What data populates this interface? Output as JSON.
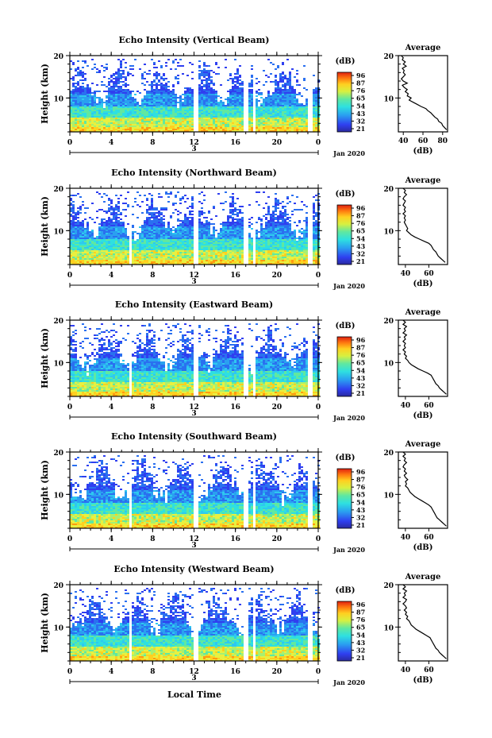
{
  "page": {
    "x_axis_label": "Local Time",
    "date_label": "Jan 2020",
    "date_tick": "3"
  },
  "chart_data": [
    {
      "type": "heatmap",
      "title": "Echo Intensity (Vertical Beam)",
      "ylabel": "Height (km)",
      "xlim": [
        0,
        24
      ],
      "ylim": [
        2,
        20
      ],
      "x_ticks": [
        "0",
        "4",
        "8",
        "12",
        "16",
        "20",
        "0"
      ],
      "y_ticks": [
        "10",
        "20"
      ],
      "colorbar": {
        "unit": "(dB)",
        "ticks": [
          "96",
          "87",
          "76",
          "65",
          "54",
          "43",
          "32",
          "21"
        ]
      },
      "gaps_hours": [
        [
          12.0,
          12.5
        ],
        [
          16.9,
          17.3
        ],
        [
          17.7,
          18.0
        ],
        [
          23.0,
          23.4
        ]
      ],
      "profile": {
        "title": "Average",
        "xlabel": "(dB)",
        "xlim": [
          35,
          85
        ],
        "x_ticks": [
          "40",
          "60",
          "80"
        ],
        "y_ticks": [
          "10",
          "20"
        ],
        "points": [
          [
            38,
            20
          ],
          [
            40,
            19.5
          ],
          [
            39,
            19
          ],
          [
            42,
            18.5
          ],
          [
            40,
            18
          ],
          [
            43,
            17.5
          ],
          [
            39,
            17
          ],
          [
            41,
            16.5
          ],
          [
            40,
            16
          ],
          [
            42,
            15.5
          ],
          [
            40,
            15
          ],
          [
            38,
            14.5
          ],
          [
            40,
            14
          ],
          [
            44,
            13.5
          ],
          [
            39,
            13
          ],
          [
            41,
            12.5
          ],
          [
            44,
            12
          ],
          [
            42,
            11.5
          ],
          [
            45,
            11
          ],
          [
            44,
            10.5
          ],
          [
            48,
            10
          ],
          [
            46,
            9.5
          ],
          [
            50,
            9
          ],
          [
            54,
            8.5
          ],
          [
            58,
            8
          ],
          [
            63,
            7.5
          ],
          [
            65,
            7
          ],
          [
            68,
            6.5
          ],
          [
            70,
            6
          ],
          [
            72,
            5.5
          ],
          [
            75,
            5
          ],
          [
            76,
            4.5
          ],
          [
            79,
            4
          ],
          [
            80,
            3.5
          ],
          [
            82,
            3
          ],
          [
            84,
            2.5
          ]
        ]
      }
    },
    {
      "type": "heatmap",
      "title": "Echo Intensity (Northward Beam)",
      "ylabel": "Height (km)",
      "xlim": [
        0,
        24
      ],
      "ylim": [
        2,
        20
      ],
      "x_ticks": [
        "0",
        "4",
        "8",
        "12",
        "16",
        "20",
        "0"
      ],
      "y_ticks": [
        "10",
        "20"
      ],
      "colorbar": {
        "unit": "(dB)",
        "ticks": [
          "96",
          "87",
          "76",
          "65",
          "54",
          "43",
          "32",
          "21"
        ]
      },
      "gaps_hours": [
        [
          5.8,
          6.0
        ],
        [
          12.0,
          12.5
        ],
        [
          16.9,
          17.3
        ],
        [
          17.7,
          18.0
        ],
        [
          23.0,
          23.4
        ]
      ],
      "profile": {
        "title": "Average",
        "xlabel": "(dB)",
        "xlim": [
          34,
          76
        ],
        "x_ticks": [
          "40",
          "60"
        ],
        "y_ticks": [
          "10",
          "20"
        ],
        "points": [
          [
            38,
            20
          ],
          [
            40,
            19.5
          ],
          [
            39,
            19
          ],
          [
            41,
            18.5
          ],
          [
            39,
            18
          ],
          [
            38,
            17.5
          ],
          [
            40,
            17
          ],
          [
            39,
            16.5
          ],
          [
            38,
            16
          ],
          [
            40,
            15.5
          ],
          [
            39,
            15
          ],
          [
            40,
            14.5
          ],
          [
            38,
            14
          ],
          [
            40,
            13.5
          ],
          [
            39,
            13
          ],
          [
            40,
            12.5
          ],
          [
            39,
            12
          ],
          [
            40,
            11.5
          ],
          [
            41,
            11
          ],
          [
            42,
            10.5
          ],
          [
            41,
            10
          ],
          [
            43,
            9.5
          ],
          [
            45,
            9
          ],
          [
            48,
            8.5
          ],
          [
            52,
            8
          ],
          [
            56,
            7.5
          ],
          [
            60,
            7
          ],
          [
            62,
            6.5
          ],
          [
            63,
            6
          ],
          [
            64,
            5.5
          ],
          [
            66,
            5
          ],
          [
            67,
            4.5
          ],
          [
            68,
            4
          ],
          [
            70,
            3.5
          ],
          [
            72,
            3
          ],
          [
            74,
            2.5
          ]
        ]
      }
    },
    {
      "type": "heatmap",
      "title": "Echo Intensity (Eastward Beam)",
      "ylabel": "Height (km)",
      "xlim": [
        0,
        24
      ],
      "ylim": [
        2,
        20
      ],
      "x_ticks": [
        "0",
        "4",
        "8",
        "12",
        "16",
        "20",
        "0"
      ],
      "y_ticks": [
        "10",
        "20"
      ],
      "colorbar": {
        "unit": "(dB)",
        "ticks": [
          "96",
          "87",
          "76",
          "65",
          "54",
          "43",
          "32",
          "21"
        ]
      },
      "gaps_hours": [
        [
          5.8,
          6.0
        ],
        [
          12.0,
          12.5
        ],
        [
          16.9,
          17.3
        ],
        [
          17.7,
          18.0
        ],
        [
          23.0,
          23.4
        ]
      ],
      "profile": {
        "title": "Average",
        "xlabel": "(dB)",
        "xlim": [
          34,
          76
        ],
        "x_ticks": [
          "40",
          "60"
        ],
        "y_ticks": [
          "10",
          "20"
        ],
        "points": [
          [
            38,
            20
          ],
          [
            40,
            19.5
          ],
          [
            38,
            19
          ],
          [
            41,
            18.5
          ],
          [
            39,
            18
          ],
          [
            40,
            17.5
          ],
          [
            38,
            17
          ],
          [
            41,
            16.5
          ],
          [
            39,
            16
          ],
          [
            40,
            15.5
          ],
          [
            38,
            15
          ],
          [
            40,
            14.5
          ],
          [
            39,
            14
          ],
          [
            40,
            13.5
          ],
          [
            38,
            13
          ],
          [
            40,
            12.5
          ],
          [
            39,
            12
          ],
          [
            41,
            11.5
          ],
          [
            40,
            11
          ],
          [
            42,
            10.5
          ],
          [
            43,
            10
          ],
          [
            45,
            9.5
          ],
          [
            48,
            9
          ],
          [
            51,
            8.5
          ],
          [
            55,
            8
          ],
          [
            59,
            7.5
          ],
          [
            62,
            7
          ],
          [
            63,
            6.5
          ],
          [
            64,
            6
          ],
          [
            65,
            5.5
          ],
          [
            66,
            5
          ],
          [
            68,
            4.5
          ],
          [
            69,
            4
          ],
          [
            71,
            3.5
          ],
          [
            73,
            3
          ],
          [
            75,
            2.5
          ]
        ]
      }
    },
    {
      "type": "heatmap",
      "title": "Echo Intensity (Southward Beam)",
      "ylabel": "Height (km)",
      "xlim": [
        0,
        24
      ],
      "ylim": [
        2,
        20
      ],
      "x_ticks": [
        "0",
        "4",
        "8",
        "12",
        "16",
        "20",
        "0"
      ],
      "y_ticks": [
        "10",
        "20"
      ],
      "colorbar": {
        "unit": "(dB)",
        "ticks": [
          "96",
          "87",
          "76",
          "65",
          "54",
          "43",
          "32",
          "21"
        ]
      },
      "gaps_hours": [
        [
          5.8,
          6.0
        ],
        [
          12.0,
          12.5
        ],
        [
          16.9,
          17.3
        ],
        [
          17.7,
          18.0
        ],
        [
          23.0,
          23.4
        ]
      ],
      "profile": {
        "title": "Average",
        "xlabel": "(dB)",
        "xlim": [
          34,
          76
        ],
        "x_ticks": [
          "40",
          "60"
        ],
        "y_ticks": [
          "10",
          "20"
        ],
        "points": [
          [
            38,
            20
          ],
          [
            40,
            19.5
          ],
          [
            38,
            19
          ],
          [
            40,
            18.5
          ],
          [
            39,
            18
          ],
          [
            41,
            17.5
          ],
          [
            39,
            17
          ],
          [
            38,
            16.5
          ],
          [
            40,
            16
          ],
          [
            39,
            15.5
          ],
          [
            41,
            15
          ],
          [
            39,
            14.5
          ],
          [
            40,
            14
          ],
          [
            42,
            13.5
          ],
          [
            40,
            13
          ],
          [
            41,
            12.5
          ],
          [
            40,
            12
          ],
          [
            42,
            11.5
          ],
          [
            43,
            11
          ],
          [
            44,
            10.5
          ],
          [
            46,
            10
          ],
          [
            48,
            9.5
          ],
          [
            51,
            9
          ],
          [
            54,
            8.5
          ],
          [
            57,
            8
          ],
          [
            60,
            7.5
          ],
          [
            62,
            7
          ],
          [
            63,
            6.5
          ],
          [
            64,
            6
          ],
          [
            65,
            5.5
          ],
          [
            66,
            5
          ],
          [
            67,
            4.5
          ],
          [
            69,
            4
          ],
          [
            71,
            3.5
          ],
          [
            73,
            3
          ],
          [
            75,
            2.5
          ]
        ]
      }
    },
    {
      "type": "heatmap",
      "title": "Echo Intensity (Westward Beam)",
      "ylabel": "Height (km)",
      "xlim": [
        0,
        24
      ],
      "ylim": [
        2,
        20
      ],
      "x_ticks": [
        "0",
        "4",
        "8",
        "12",
        "16",
        "20",
        "0"
      ],
      "y_ticks": [
        "10",
        "20"
      ],
      "colorbar": {
        "unit": "(dB)",
        "ticks": [
          "96",
          "87",
          "76",
          "65",
          "54",
          "43",
          "32",
          "21"
        ]
      },
      "gaps_hours": [
        [
          5.8,
          6.0
        ],
        [
          12.0,
          12.5
        ],
        [
          16.9,
          17.3
        ],
        [
          17.7,
          18.0
        ],
        [
          23.0,
          23.4
        ]
      ],
      "profile": {
        "title": "Average",
        "xlabel": "(dB)",
        "xlim": [
          34,
          76
        ],
        "x_ticks": [
          "40",
          "60"
        ],
        "y_ticks": [
          "10",
          "20"
        ],
        "points": [
          [
            38,
            20
          ],
          [
            40,
            19.5
          ],
          [
            38,
            19
          ],
          [
            41,
            18.5
          ],
          [
            39,
            18
          ],
          [
            40,
            17.5
          ],
          [
            38,
            17
          ],
          [
            41,
            16.5
          ],
          [
            40,
            16
          ],
          [
            38,
            15.5
          ],
          [
            40,
            15
          ],
          [
            41,
            14.5
          ],
          [
            39,
            14
          ],
          [
            41,
            13.5
          ],
          [
            40,
            13
          ],
          [
            42,
            12.5
          ],
          [
            41,
            12
          ],
          [
            43,
            11.5
          ],
          [
            44,
            11
          ],
          [
            45,
            10.5
          ],
          [
            47,
            10
          ],
          [
            49,
            9.5
          ],
          [
            52,
            9
          ],
          [
            55,
            8.5
          ],
          [
            58,
            8
          ],
          [
            61,
            7.5
          ],
          [
            62,
            7
          ],
          [
            63,
            6.5
          ],
          [
            64,
            6
          ],
          [
            65,
            5.5
          ],
          [
            66,
            5
          ],
          [
            68,
            4.5
          ],
          [
            69,
            4
          ],
          [
            71,
            3.5
          ],
          [
            73,
            3
          ],
          [
            75,
            2.5
          ]
        ]
      }
    }
  ]
}
